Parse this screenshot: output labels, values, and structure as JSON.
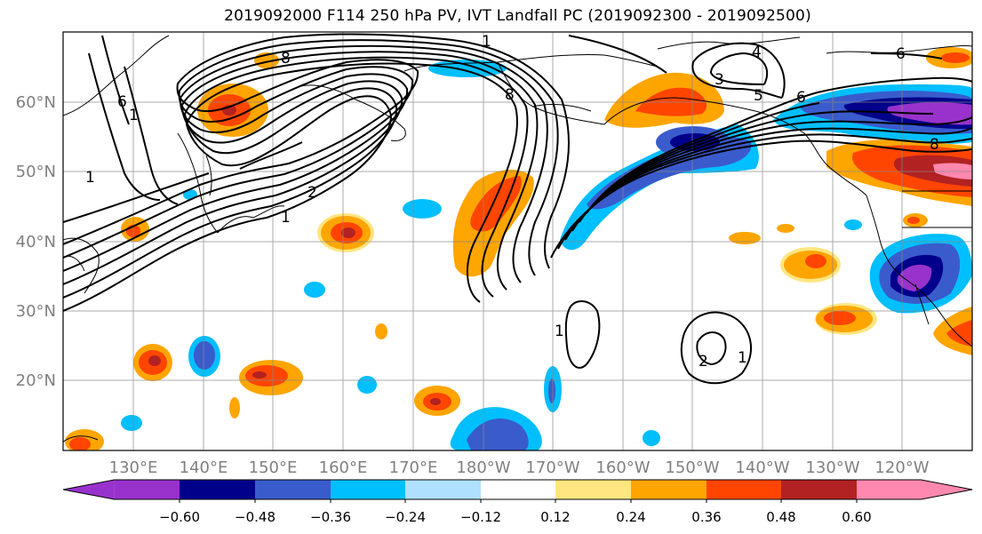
{
  "title": "2019092000 F114 250 hPa PV, IVT Landfall PC (2019092300 - 2019092500)",
  "map": {
    "lat_labels": [
      "60°N",
      "50°N",
      "40°N",
      "30°N",
      "20°N"
    ],
    "lon_labels": [
      "130°E",
      "140°E",
      "150°E",
      "160°E",
      "170°E",
      "180°W",
      "170°W",
      "160°W",
      "150°W",
      "140°W",
      "130°W",
      "120°W"
    ],
    "contour_labels": [
      {
        "text": "8"
      },
      {
        "text": "8"
      },
      {
        "text": "1"
      },
      {
        "text": "2"
      },
      {
        "text": "1"
      },
      {
        "text": "6"
      },
      {
        "text": "1"
      },
      {
        "text": "3"
      },
      {
        "text": "4"
      },
      {
        "text": "5"
      },
      {
        "text": "6"
      },
      {
        "text": "6"
      },
      {
        "text": "8"
      },
      {
        "text": "1"
      },
      {
        "text": "1"
      },
      {
        "text": "2"
      },
      {
        "text": "1"
      }
    ]
  },
  "colorbar": {
    "ticks": [
      "−0.60",
      "−0.48",
      "−0.36",
      "−0.24",
      "−0.12",
      "0.12",
      "0.24",
      "0.36",
      "0.48",
      "0.60"
    ],
    "colors": [
      "#9932cc",
      "#00008b",
      "#3a5bcc",
      "#00bfff",
      "#b0e0ff",
      "#ffffff",
      "#ffe680",
      "#ffa500",
      "#ff4500",
      "#b22222",
      "#ff88b0"
    ]
  }
}
